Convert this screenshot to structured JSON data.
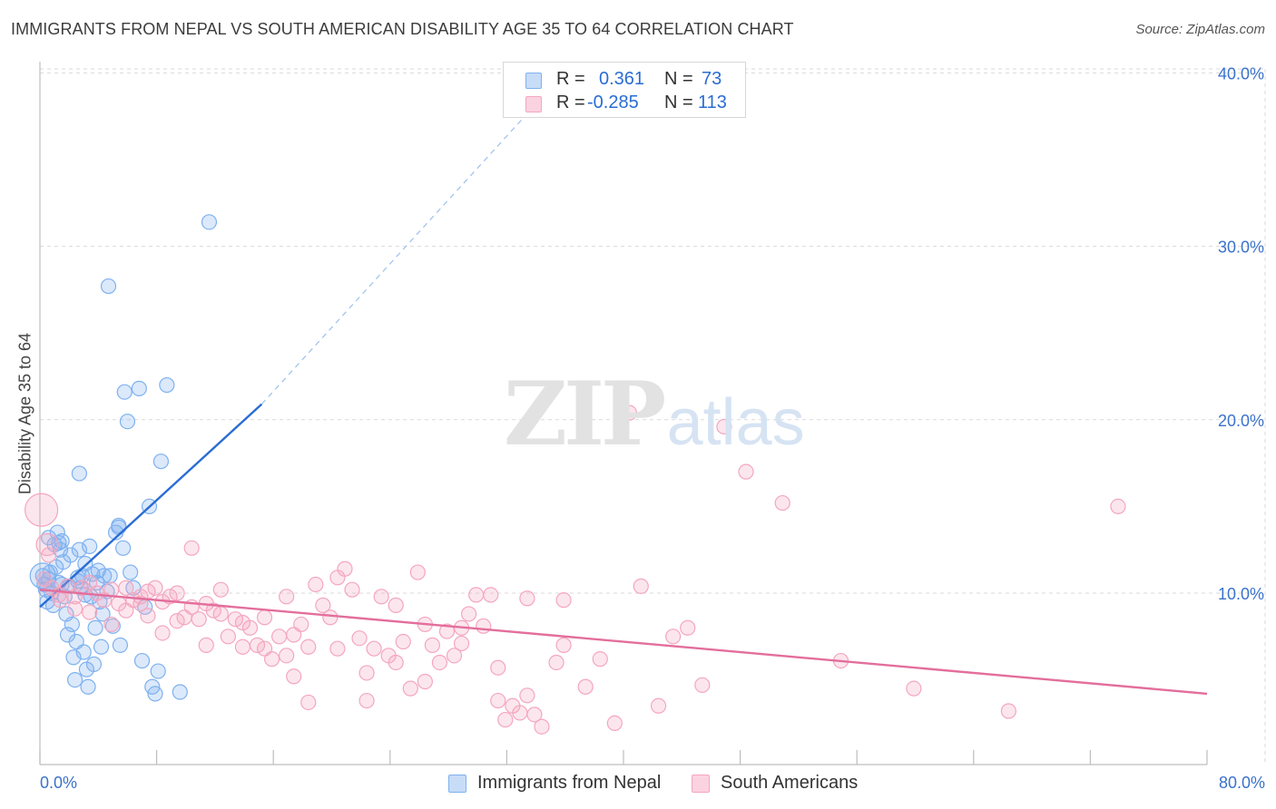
{
  "header": {
    "title": "IMMIGRANTS FROM NEPAL VS SOUTH AMERICAN DISABILITY AGE 35 TO 64 CORRELATION CHART",
    "source": "Source: ZipAtlas.com"
  },
  "watermark": {
    "zip": "ZIP",
    "atlas": "atlas"
  },
  "stats": [
    {
      "r_label": "R =",
      "r_value": "0.361",
      "n_label": "N =",
      "n_value": "73",
      "color": "#7fb1ef"
    },
    {
      "r_label": "R =",
      "r_value": "-0.285",
      "n_label": "N =",
      "n_value": "113",
      "color": "#f4a6bf"
    }
  ],
  "legend": [
    {
      "label": "Immigrants from Nepal",
      "color": "#7fb1ef"
    },
    {
      "label": "South Americans",
      "color": "#f4a6bf"
    }
  ],
  "chart_data": {
    "type": "scatter",
    "title": "IMMIGRANTS FROM NEPAL VS SOUTH AMERICAN DISABILITY AGE 35 TO 64 CORRELATION CHART",
    "xlabel": "",
    "ylabel": "Disability Age 35 to 64",
    "xlim": [
      0,
      80
    ],
    "ylim": [
      0,
      42
    ],
    "x_tick_labels": [
      {
        "value": 0,
        "label": "0.0%"
      },
      {
        "value": 80,
        "label": "80.0%"
      }
    ],
    "y_tick_labels": [
      {
        "value": 10,
        "label": "10.0%"
      },
      {
        "value": 20,
        "label": "20.0%"
      },
      {
        "value": 30,
        "label": "30.0%"
      },
      {
        "value": 40,
        "label": "40.0%"
      }
    ],
    "x_minor_ticks": [
      0,
      8,
      16,
      24,
      32,
      40,
      48,
      56,
      64,
      72,
      80
    ],
    "grid": true,
    "series": [
      {
        "name": "Immigrants from Nepal",
        "color": "#7fb1ef",
        "line_color": "#2a6cd4",
        "trend": {
          "x1": 0,
          "y1": 9.2,
          "x2": 15.2,
          "y2": 20.9,
          "extend_to_x": 36.5,
          "extend_to_y": 40.5
        },
        "points": [
          [
            0.2,
            11.0
          ],
          [
            0.3,
            10.5
          ],
          [
            0.4,
            10.2
          ],
          [
            0.5,
            9.5
          ],
          [
            0.6,
            10.8
          ],
          [
            0.7,
            11.2
          ],
          [
            0.8,
            10.0
          ],
          [
            0.9,
            9.3
          ],
          [
            1.0,
            12.8
          ],
          [
            1.1,
            11.5
          ],
          [
            1.2,
            13.5
          ],
          [
            1.3,
            10.6
          ],
          [
            1.4,
            12.5
          ],
          [
            1.5,
            13.0
          ],
          [
            1.6,
            11.8
          ],
          [
            1.7,
            9.8
          ],
          [
            1.8,
            8.8
          ],
          [
            1.9,
            7.6
          ],
          [
            2.0,
            10.4
          ],
          [
            2.1,
            12.2
          ],
          [
            2.2,
            8.2
          ],
          [
            2.3,
            6.3
          ],
          [
            2.4,
            5.0
          ],
          [
            2.5,
            7.2
          ],
          [
            2.6,
            10.9
          ],
          [
            2.7,
            12.5
          ],
          [
            2.8,
            10.3
          ],
          [
            2.9,
            11.0
          ],
          [
            3.0,
            6.6
          ],
          [
            3.1,
            9.9
          ],
          [
            3.2,
            5.6
          ],
          [
            3.3,
            4.6
          ],
          [
            3.4,
            12.7
          ],
          [
            3.5,
            9.8
          ],
          [
            3.6,
            11.1
          ],
          [
            3.7,
            5.9
          ],
          [
            3.8,
            8.0
          ],
          [
            3.9,
            10.6
          ],
          [
            4.0,
            11.3
          ],
          [
            4.1,
            9.5
          ],
          [
            4.2,
            6.9
          ],
          [
            4.3,
            8.8
          ],
          [
            4.4,
            11.0
          ],
          [
            4.6,
            10.1
          ],
          [
            4.8,
            11.0
          ],
          [
            5.0,
            8.1
          ],
          [
            5.2,
            13.5
          ],
          [
            5.4,
            13.8
          ],
          [
            5.5,
            7.0
          ],
          [
            5.7,
            12.6
          ],
          [
            5.8,
            21.6
          ],
          [
            6.0,
            19.9
          ],
          [
            6.2,
            11.2
          ],
          [
            5.4,
            13.9
          ],
          [
            6.4,
            10.3
          ],
          [
            6.8,
            21.8
          ],
          [
            7.0,
            6.1
          ],
          [
            7.2,
            9.2
          ],
          [
            7.5,
            15.0
          ],
          [
            7.7,
            4.6
          ],
          [
            7.9,
            4.2
          ],
          [
            8.1,
            5.5
          ],
          [
            8.3,
            17.6
          ],
          [
            8.7,
            22.0
          ],
          [
            9.6,
            4.3
          ],
          [
            11.6,
            31.4
          ],
          [
            2.6,
            10.7
          ],
          [
            3.1,
            11.7
          ],
          [
            1.3,
            12.9
          ],
          [
            0.6,
            13.2
          ],
          [
            4.7,
            27.7
          ],
          [
            2.7,
            16.9
          ],
          [
            1.5,
            10.5
          ]
        ],
        "big_points": [
          [
            0.2,
            11.0,
            14
          ]
        ]
      },
      {
        "name": "South Americans",
        "color": "#f4a6bf",
        "line_color": "#e36e9c",
        "trend": {
          "x1": 0,
          "y1": 10.2,
          "x2": 80,
          "y2": 4.2
        },
        "points": [
          [
            0.3,
            10.8
          ],
          [
            0.8,
            10.3
          ],
          [
            1.3,
            9.9
          ],
          [
            1.9,
            10.4
          ],
          [
            2.4,
            9.8
          ],
          [
            2.9,
            10.3
          ],
          [
            3.4,
            10.6
          ],
          [
            3.9,
            10.0
          ],
          [
            4.4,
            9.6
          ],
          [
            4.9,
            10.2
          ],
          [
            5.4,
            9.4
          ],
          [
            5.9,
            10.3
          ],
          [
            6.4,
            9.6
          ],
          [
            6.9,
            9.8
          ],
          [
            7.4,
            10.1
          ],
          [
            7.9,
            10.3
          ],
          [
            8.4,
            9.5
          ],
          [
            8.9,
            9.8
          ],
          [
            9.4,
            10.0
          ],
          [
            9.9,
            8.6
          ],
          [
            10.4,
            9.2
          ],
          [
            10.9,
            8.5
          ],
          [
            11.4,
            9.4
          ],
          [
            11.9,
            9.0
          ],
          [
            12.4,
            8.8
          ],
          [
            12.9,
            7.5
          ],
          [
            13.4,
            8.5
          ],
          [
            13.9,
            8.3
          ],
          [
            14.4,
            8.0
          ],
          [
            14.9,
            7.0
          ],
          [
            15.4,
            6.8
          ],
          [
            15.9,
            6.2
          ],
          [
            16.4,
            7.5
          ],
          [
            16.9,
            9.8
          ],
          [
            17.4,
            7.6
          ],
          [
            17.9,
            8.2
          ],
          [
            18.4,
            6.9
          ],
          [
            18.9,
            10.5
          ],
          [
            19.4,
            9.3
          ],
          [
            19.9,
            8.6
          ],
          [
            20.4,
            10.9
          ],
          [
            20.9,
            11.4
          ],
          [
            21.4,
            10.2
          ],
          [
            21.9,
            7.4
          ],
          [
            22.4,
            5.4
          ],
          [
            22.9,
            6.8
          ],
          [
            23.4,
            9.8
          ],
          [
            23.9,
            6.4
          ],
          [
            24.4,
            6.0
          ],
          [
            24.9,
            7.2
          ],
          [
            25.4,
            4.5
          ],
          [
            25.9,
            11.2
          ],
          [
            26.4,
            8.2
          ],
          [
            26.9,
            7.0
          ],
          [
            27.4,
            6.0
          ],
          [
            27.9,
            7.8
          ],
          [
            28.4,
            6.4
          ],
          [
            28.9,
            8.0
          ],
          [
            29.4,
            8.8
          ],
          [
            29.9,
            9.9
          ],
          [
            30.4,
            8.1
          ],
          [
            30.9,
            9.9
          ],
          [
            31.4,
            3.8
          ],
          [
            31.9,
            2.7
          ],
          [
            32.4,
            3.5
          ],
          [
            32.9,
            3.1
          ],
          [
            33.4,
            9.7
          ],
          [
            33.9,
            3.0
          ],
          [
            34.4,
            2.3
          ],
          [
            35.4,
            6.0
          ],
          [
            35.9,
            7.0
          ],
          [
            37.4,
            4.6
          ],
          [
            38.4,
            6.2
          ],
          [
            39.4,
            2.5
          ],
          [
            40.4,
            20.4
          ],
          [
            41.2,
            10.4
          ],
          [
            42.4,
            3.5
          ],
          [
            43.4,
            7.5
          ],
          [
            44.4,
            8.0
          ],
          [
            45.4,
            4.7
          ],
          [
            46.9,
            19.6
          ],
          [
            48.4,
            17.0
          ],
          [
            50.9,
            15.2
          ],
          [
            54.9,
            6.1
          ],
          [
            59.9,
            4.5
          ],
          [
            66.4,
            3.2
          ],
          [
            73.9,
            15.0
          ],
          [
            10.4,
            12.6
          ],
          [
            11.4,
            7.0
          ],
          [
            12.4,
            10.2
          ],
          [
            15.4,
            8.6
          ],
          [
            17.4,
            5.2
          ],
          [
            18.4,
            3.7
          ],
          [
            20.4,
            6.8
          ],
          [
            22.4,
            3.8
          ],
          [
            24.4,
            9.3
          ],
          [
            26.4,
            4.9
          ],
          [
            28.9,
            7.1
          ],
          [
            31.4,
            5.7
          ],
          [
            33.4,
            4.1
          ],
          [
            35.9,
            9.6
          ],
          [
            16.9,
            6.4
          ],
          [
            13.9,
            6.9
          ],
          [
            9.4,
            8.4
          ],
          [
            8.4,
            7.7
          ],
          [
            7.4,
            8.7
          ],
          [
            6.9,
            9.4
          ],
          [
            5.9,
            9.0
          ],
          [
            4.9,
            8.2
          ],
          [
            3.4,
            8.9
          ],
          [
            2.4,
            9.1
          ],
          [
            1.4,
            9.6
          ],
          [
            0.6,
            12.2
          ]
        ],
        "big_points": [
          [
            0.1,
            14.8,
            18
          ],
          [
            0.5,
            12.8,
            12
          ]
        ]
      }
    ]
  }
}
